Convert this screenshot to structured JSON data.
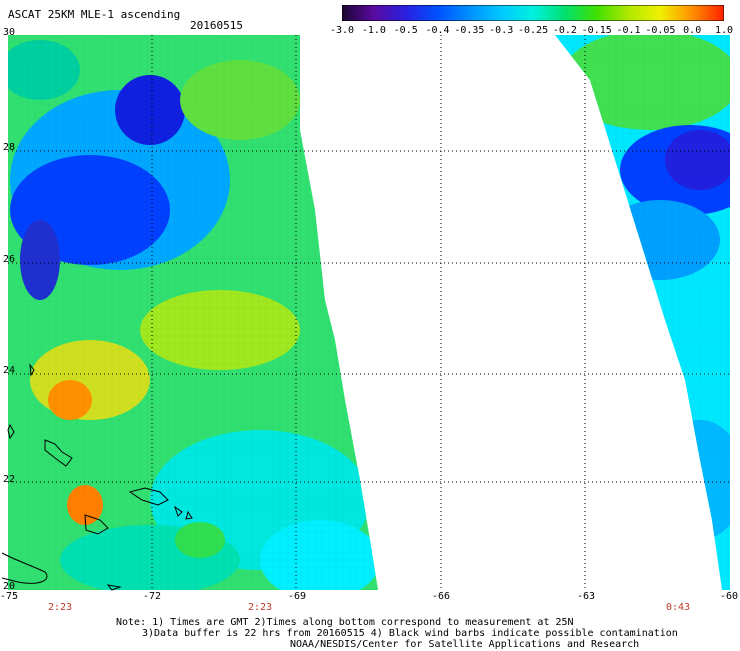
{
  "header": {
    "product": "ASCAT 25KM MLE-1 ascending",
    "date": "20160515"
  },
  "colorbar": {
    "labels": [
      "-3.0",
      "-1.0",
      "-0.5",
      "-0.4",
      "-0.35",
      "-0.3",
      "-0.25",
      "-0.2",
      "-0.15",
      "-0.1",
      "-0.05",
      "0.0",
      "1.0"
    ],
    "colors": [
      "#1a0530",
      "#5a0aa0",
      "#2a20e0",
      "#0050ff",
      "#0090ff",
      "#00c8ff",
      "#00f0e0",
      "#00e070",
      "#40e000",
      "#b0e800",
      "#f0f000",
      "#ff9000",
      "#ff2000"
    ]
  },
  "axes": {
    "lon_labels": [
      "-75",
      "-72",
      "-69",
      "-66",
      "-63",
      "-60"
    ],
    "lat_labels": [
      "30",
      "28",
      "26",
      "24",
      "22",
      "20"
    ]
  },
  "pass_times": [
    "2:23",
    "2:23",
    "0:43"
  ],
  "notes": [
    "Note: 1) Times are GMT 2)Times along bottom correspond to measurement at 25N",
    "3)Data buffer is 22 hrs from 20160515 4) Black wind barbs indicate possible contamination",
    "NOAA/NESDIS/Center for Satellite Applications and Research"
  ]
}
